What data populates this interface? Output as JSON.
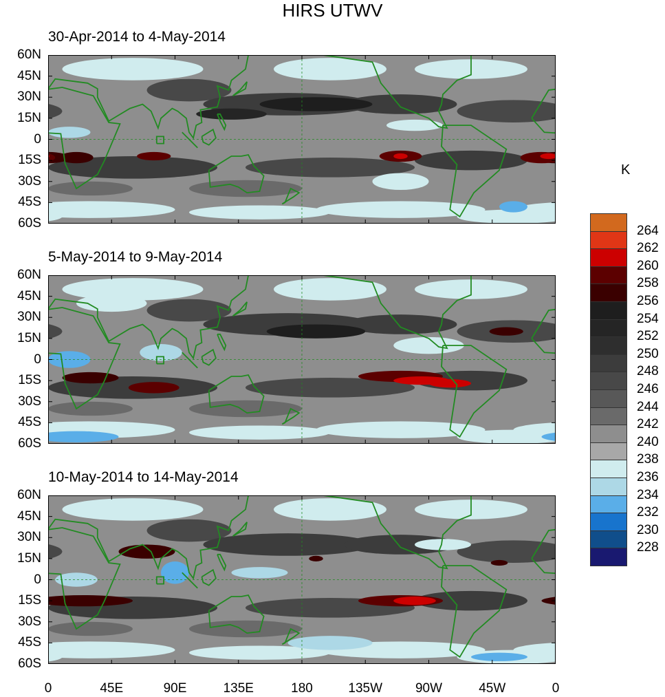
{
  "title": "HIRS UTWV",
  "panels": [
    {
      "title": "30-Apr-2014 to 4-May-2014"
    },
    {
      "title": "5-May-2014 to 9-May-2014"
    },
    {
      "title": "10-May-2014 to 14-May-2014"
    }
  ],
  "lat_ticks": [
    "60N",
    "45N",
    "30N",
    "15N",
    "0",
    "15S",
    "30S",
    "45S",
    "60S"
  ],
  "lon_ticks": [
    "0",
    "45E",
    "90E",
    "135E",
    "180",
    "135W",
    "90W",
    "45W",
    "0"
  ],
  "colorbar": {
    "unit": "K",
    "labels": [
      "264",
      "262",
      "260",
      "258",
      "256",
      "254",
      "252",
      "250",
      "248",
      "246",
      "244",
      "242",
      "240",
      "238",
      "236",
      "234",
      "232",
      "230",
      "228"
    ],
    "colors": [
      "#d2691e",
      "#e03616",
      "#cc0000",
      "#5c0000",
      "#3a0000",
      "#1e1e1e",
      "#252525",
      "#2e2e2e",
      "#3c3c3c",
      "#484848",
      "#585858",
      "#6a6a6a",
      "#8e8e8e",
      "#a8a8a8",
      "#d0ecee",
      "#add8e6",
      "#5aaee8",
      "#1874cd",
      "#104e8b",
      "#191970"
    ]
  },
  "coastline_color": "#228b22"
}
